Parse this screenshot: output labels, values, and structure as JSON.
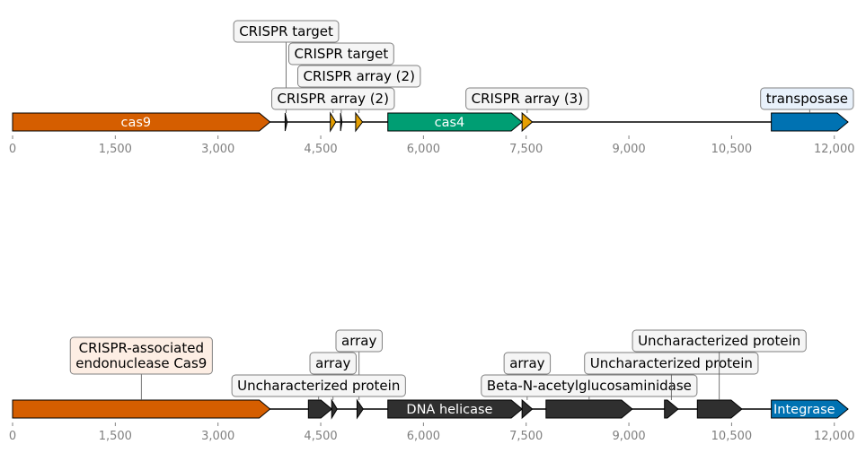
{
  "colors": {
    "orange": "#d55e00",
    "green": "#009e73",
    "yellow": "#e69f00",
    "blue": "#0072b2",
    "dark": "#2f2f2f",
    "axis_text": "#808080"
  },
  "axis": {
    "min": 0,
    "max": 12200,
    "ticks": [
      {
        "value": 0,
        "label": "0"
      },
      {
        "value": 1500,
        "label": "1,500"
      },
      {
        "value": 3000,
        "label": "3,000"
      },
      {
        "value": 4500,
        "label": "4,500"
      },
      {
        "value": 6000,
        "label": "6,000"
      },
      {
        "value": 7500,
        "label": "7,500"
      },
      {
        "value": 9000,
        "label": "9,000"
      },
      {
        "value": 10500,
        "label": "10,500"
      },
      {
        "value": 12000,
        "label": "12,000"
      }
    ]
  },
  "tracks": [
    {
      "name": "top-track",
      "features": [
        {
          "start": 0,
          "end": 3760,
          "strand": 1,
          "color": "orange",
          "inner": "cas9"
        },
        {
          "start": 3980,
          "end": 4010,
          "strand": 1,
          "color": "dark"
        },
        {
          "start": 4640,
          "end": 4720,
          "strand": 1,
          "color": "yellow"
        },
        {
          "start": 4790,
          "end": 4810,
          "strand": 1,
          "color": "dark"
        },
        {
          "start": 5010,
          "end": 5110,
          "strand": 1,
          "color": "yellow"
        },
        {
          "start": 5480,
          "end": 7440,
          "strand": 1,
          "color": "green",
          "inner": "cas4"
        },
        {
          "start": 7440,
          "end": 7590,
          "strand": 1,
          "color": "yellow"
        },
        {
          "start": 11080,
          "end": 12200,
          "strand": 1,
          "color": "blue"
        }
      ],
      "labels": [
        {
          "text": "CRISPR target",
          "anchor": 3995,
          "level": 4
        },
        {
          "text": "CRISPR target",
          "anchor": 4800,
          "level": 3
        },
        {
          "text": "CRISPR array (2)",
          "anchor": 5060,
          "level": 2
        },
        {
          "text": "CRISPR array (2)",
          "anchor": 4680,
          "level": 1
        },
        {
          "text": "CRISPR array (3)",
          "anchor": 7515,
          "level": 1
        },
        {
          "text": "transposase",
          "anchor": 11640,
          "level": 1,
          "bg": "#e8f1fb"
        }
      ]
    },
    {
      "name": "bottom-track",
      "features": [
        {
          "start": 0,
          "end": 3760,
          "strand": 1,
          "color": "orange"
        },
        {
          "start": 4320,
          "end": 4660,
          "strand": 1,
          "color": "dark"
        },
        {
          "start": 4660,
          "end": 4740,
          "strand": 1,
          "color": "dark"
        },
        {
          "start": 5030,
          "end": 5120,
          "strand": 1,
          "color": "dark"
        },
        {
          "start": 5480,
          "end": 7440,
          "strand": 1,
          "color": "dark",
          "inner": "DNA helicase"
        },
        {
          "start": 7440,
          "end": 7590,
          "strand": 1,
          "color": "dark"
        },
        {
          "start": 7790,
          "end": 9050,
          "strand": 1,
          "color": "dark"
        },
        {
          "start": 9520,
          "end": 9720,
          "strand": 1,
          "color": "dark"
        },
        {
          "start": 10000,
          "end": 10650,
          "strand": 1,
          "color": "dark"
        },
        {
          "start": 11080,
          "end": 12200,
          "strand": 1,
          "color": "blue",
          "inner": "Integrase"
        }
      ],
      "labels": [
        {
          "text": "CRISPR-associated\nendonuclease Cas9",
          "anchor": 1880,
          "level": 2,
          "bg": "#fdeee4"
        },
        {
          "text": "array",
          "anchor": 5060,
          "level": 3
        },
        {
          "text": "array",
          "anchor": 4680,
          "level": 2
        },
        {
          "text": "Uncharacterized protein",
          "anchor": 4470,
          "level": 1
        },
        {
          "text": "array",
          "anchor": 7515,
          "level": 2
        },
        {
          "text": "Beta-N-acetylglucosaminidase",
          "anchor": 8420,
          "level": 1
        },
        {
          "text": "Uncharacterized protein",
          "anchor": 9620,
          "level": 2
        },
        {
          "text": "Uncharacterized protein",
          "anchor": 10320,
          "level": 3
        }
      ]
    }
  ]
}
